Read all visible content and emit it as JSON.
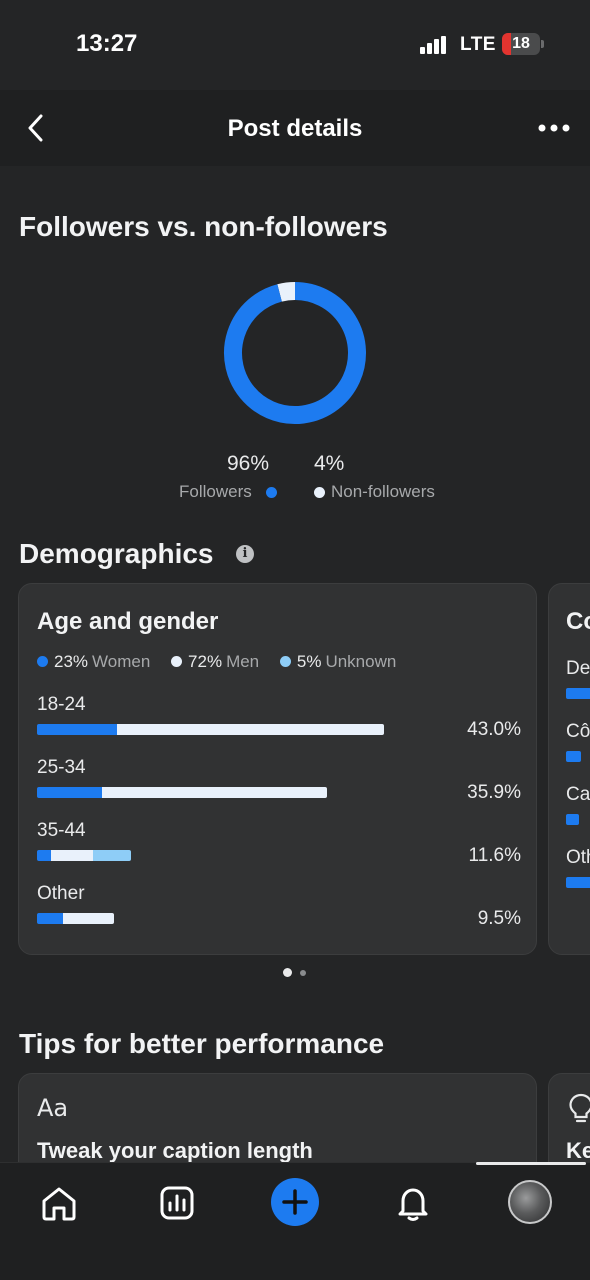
{
  "status_bar": {
    "time": "13:27",
    "network": "LTE",
    "battery": "18",
    "battery_color": "#e3342f"
  },
  "header": {
    "title": "Post details",
    "back_icon": "chevron-left-icon",
    "more_icon": "more-horizontal-icon"
  },
  "followers_section": {
    "title": "Followers vs. non-followers",
    "chart_data": {
      "type": "pie",
      "categories": [
        "Followers",
        "Non-followers"
      ],
      "values": [
        96,
        4
      ],
      "colors": [
        "#1d7bf0",
        "#e9f1fb"
      ]
    },
    "followers_pct": "96%",
    "followers_label": "Followers",
    "non_followers_pct": "4%",
    "non_followers_label": "Non-followers"
  },
  "demographics": {
    "title": "Demographics",
    "info_icon": "info-icon",
    "age_gender_card": {
      "title": "Age and gender",
      "legend": [
        {
          "pct": "23%",
          "label": "Women",
          "color": "#1d7bf0"
        },
        {
          "pct": "72%",
          "label": "Men",
          "color": "#e9f1fb"
        },
        {
          "pct": "5%",
          "label": "Unknown",
          "color": "#8ecdf7"
        }
      ],
      "rows": [
        {
          "label": "18-24",
          "pct": "43.0%"
        },
        {
          "label": "25-34",
          "pct": "35.9%"
        },
        {
          "label": "35-44",
          "pct": "11.6%"
        },
        {
          "label": "Other",
          "pct": "9.5%"
        }
      ],
      "chart_data": {
        "type": "bar",
        "categories": [
          "18-24",
          "25-34",
          "35-44",
          "Other"
        ],
        "values": [
          43.0,
          35.9,
          11.6,
          9.5
        ],
        "series": [
          {
            "name": "Women",
            "values": [
              9.9,
              8.0,
              1.7,
              3.2
            ]
          },
          {
            "name": "Men",
            "values": [
              33.1,
              27.9,
              5.2,
              6.3
            ]
          },
          {
            "name": "Unknown",
            "values": [
              0,
              0,
              4.7,
              0
            ]
          }
        ],
        "max": 43.0
      }
    },
    "second_card": {
      "title": "Co",
      "items": [
        {
          "label": "De",
          "level": 1.0
        },
        {
          "label": "Cô",
          "level": 0.6
        },
        {
          "label": "Ca",
          "level": 0.5
        },
        {
          "label": "Oth",
          "level": 1.0
        }
      ]
    },
    "pagination": {
      "count": 2,
      "active": 0
    }
  },
  "tips": {
    "title": "Tips for better performance",
    "cards": [
      {
        "icon": "Aa",
        "icon_name": "text-format-icon",
        "heading": "Tweak your caption length"
      },
      {
        "icon_name": "lightbulb-icon",
        "heading": "Ke"
      }
    ]
  },
  "bottom_nav": {
    "items": [
      "home-icon",
      "analytics-icon",
      "add-icon",
      "notifications-icon",
      "profile-avatar"
    ]
  }
}
